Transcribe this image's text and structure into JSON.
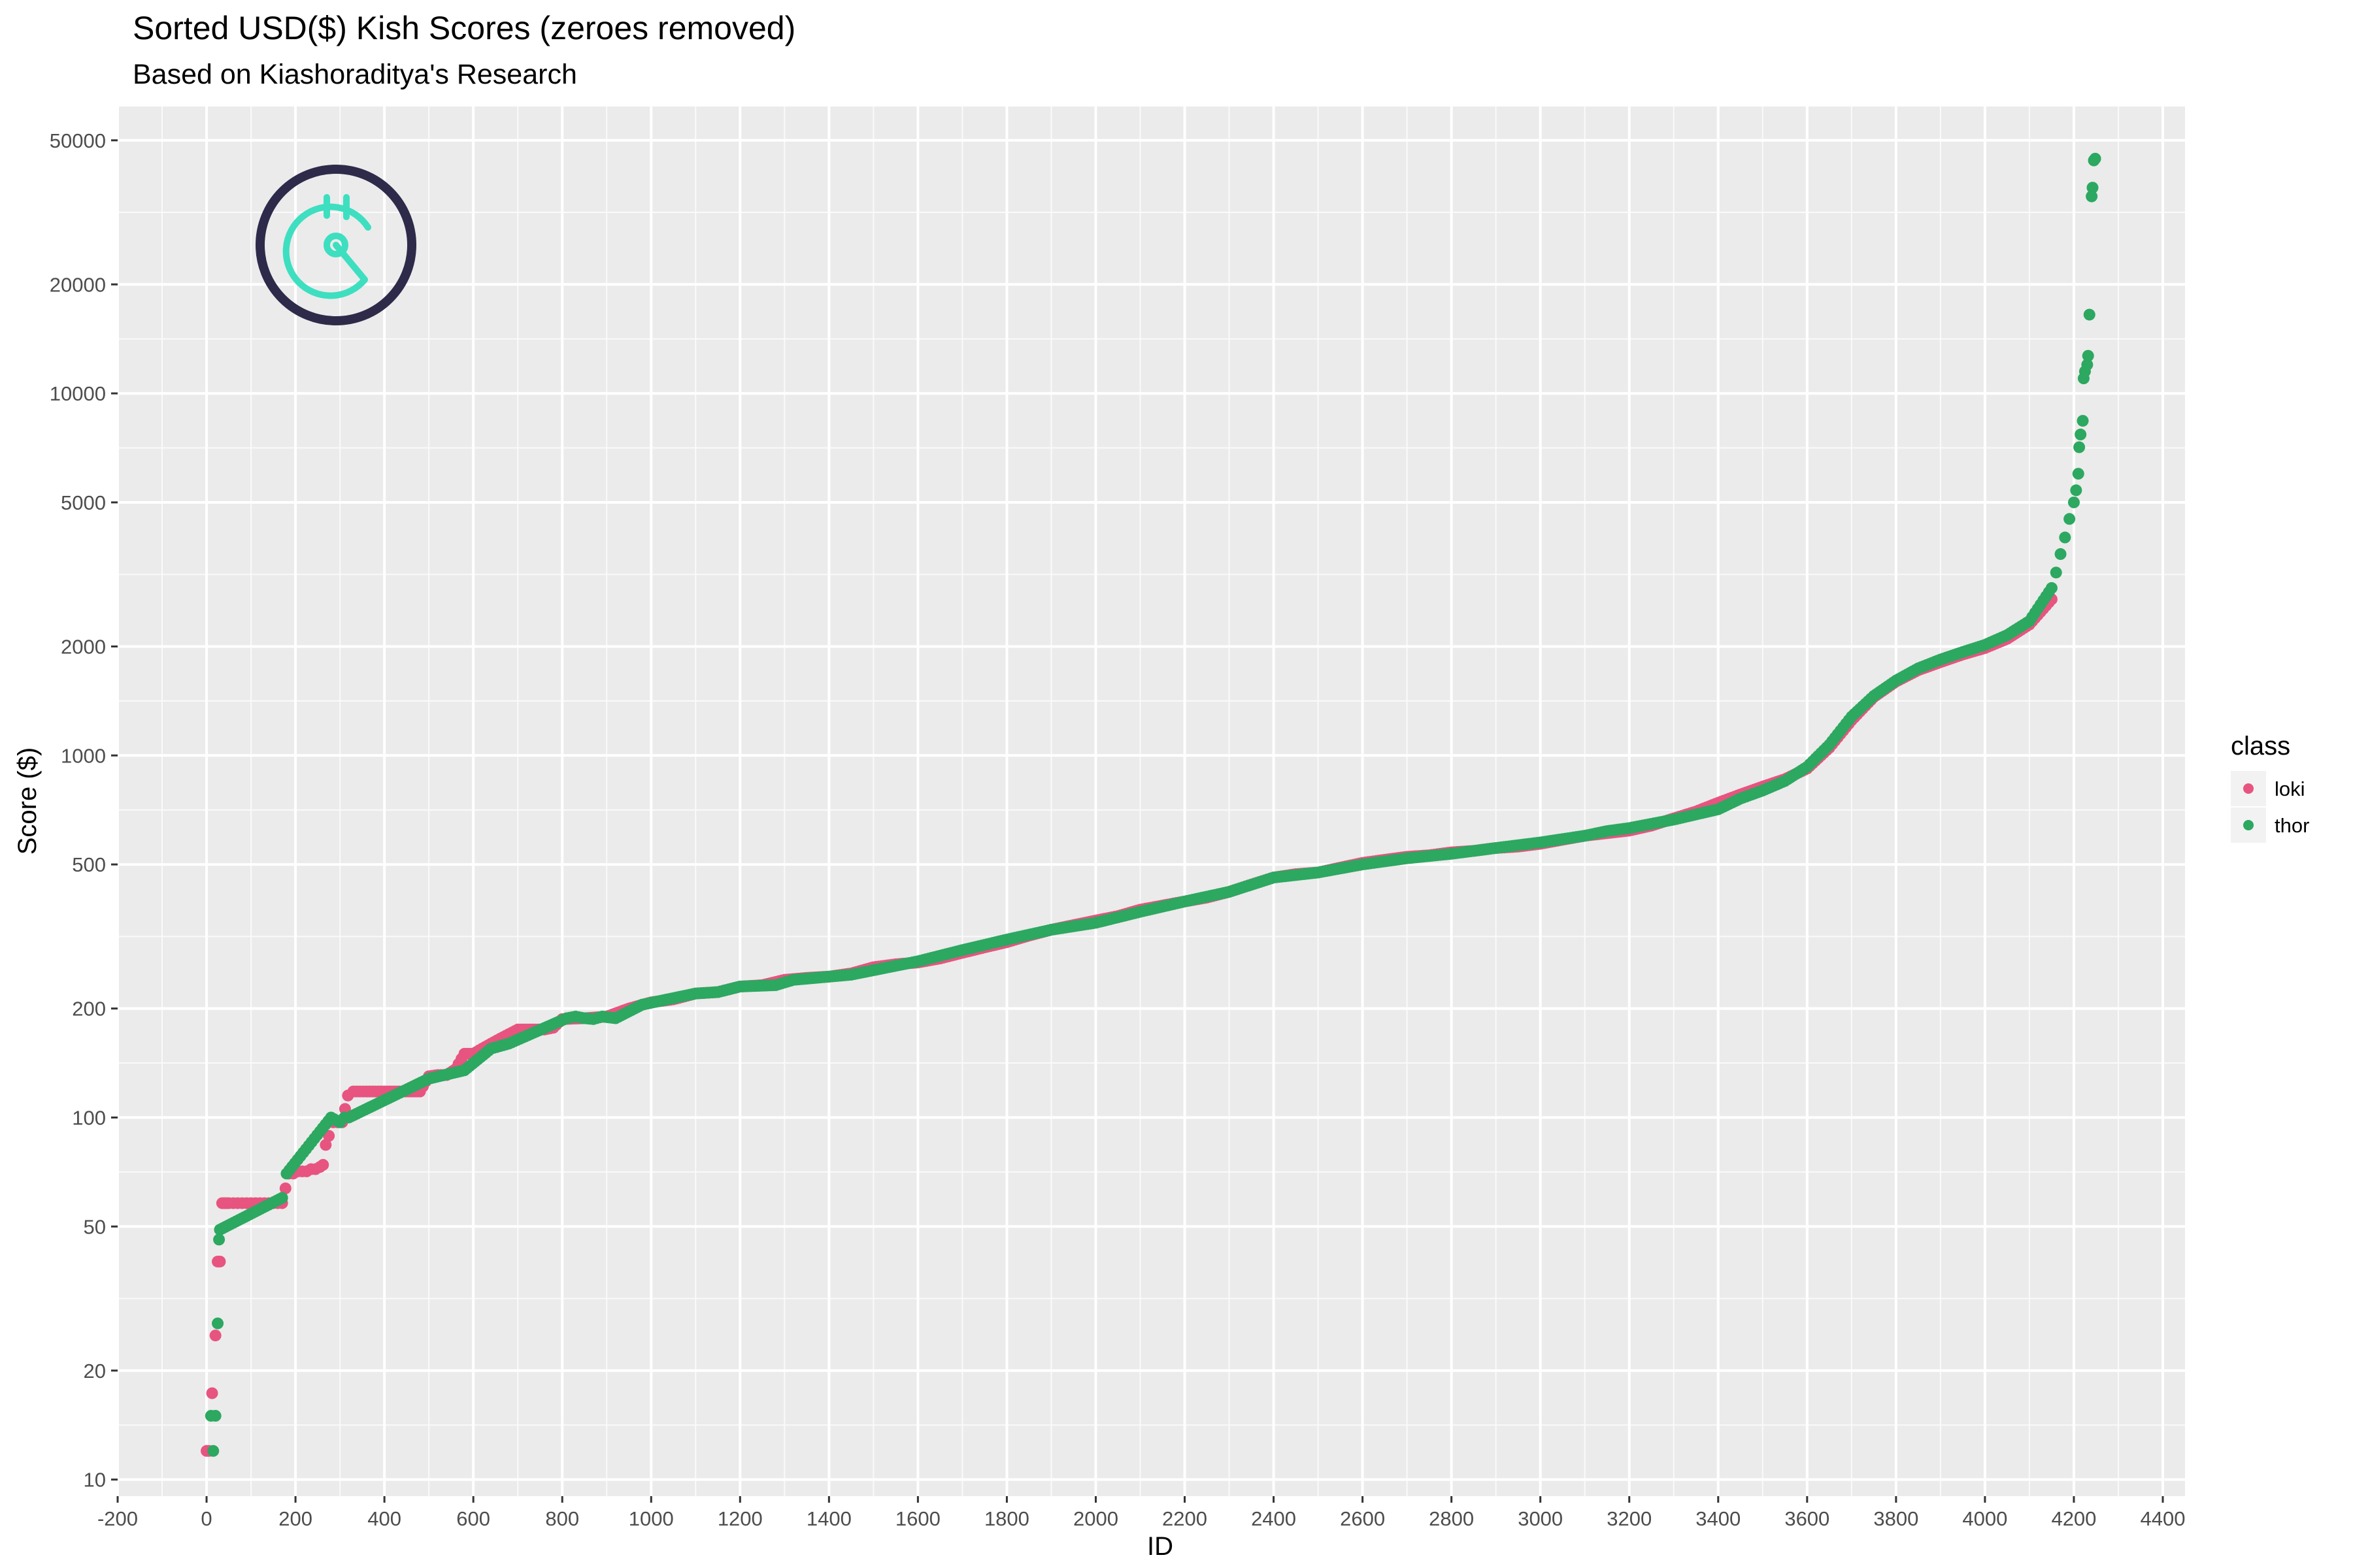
{
  "chart_data": {
    "type": "scatter",
    "title": "Sorted USD($) Kish Scores (zeroes removed)",
    "subtitle": "Based on Kiashoraditya's Research",
    "xlabel": "ID",
    "ylabel": "Score ($)",
    "xlim": [
      -200,
      4450
    ],
    "ylim": [
      9,
      62000
    ],
    "y_scale": "log10",
    "grid": true,
    "x_ticks": [
      -200,
      0,
      200,
      400,
      600,
      800,
      1000,
      1200,
      1400,
      1600,
      1800,
      2000,
      2200,
      2400,
      2600,
      2800,
      3000,
      3200,
      3400,
      3600,
      3800,
      4000,
      4200,
      4400
    ],
    "y_ticks": [
      10,
      20,
      50,
      100,
      200,
      500,
      1000,
      2000,
      5000,
      10000,
      20000,
      50000
    ],
    "y_tick_labels": [
      "10",
      "20",
      "50",
      "100",
      "200",
      "500",
      "1000",
      "2000",
      "5000",
      "10000",
      "20000",
      "50000"
    ],
    "legend": {
      "title": "class",
      "position": "right"
    },
    "series": [
      {
        "name": "loki",
        "color": "#E75480",
        "x": [
          0,
          5,
          20,
          25,
          30,
          35,
          40,
          45,
          50,
          60,
          70,
          80,
          90,
          100,
          110,
          120,
          130,
          140,
          150,
          160,
          170,
          185,
          195,
          205,
          215,
          225,
          235,
          245,
          255,
          262,
          268,
          275,
          285,
          295,
          305,
          318,
          330,
          345,
          360,
          380,
          400,
          420,
          440,
          460,
          480,
          500,
          520,
          540,
          560,
          580,
          600,
          620,
          640,
          660,
          700,
          720,
          740,
          760,
          780,
          800,
          850,
          900,
          950,
          1000,
          1050,
          1100,
          1150,
          1200,
          1250,
          1300,
          1350,
          1400,
          1450,
          1500,
          1550,
          1600,
          1650,
          1700,
          1750,
          1800,
          1850,
          1900,
          1950,
          2000,
          2050,
          2100,
          2150,
          2200,
          2250,
          2300,
          2350,
          2400,
          2450,
          2500,
          2550,
          2600,
          2650,
          2700,
          2750,
          2800,
          2850,
          2900,
          2950,
          3000,
          3050,
          3100,
          3150,
          3200,
          3250,
          3300,
          3350,
          3400,
          3450,
          3500,
          3550,
          3600,
          3650,
          3700,
          3750,
          3800,
          3850,
          3900,
          3950,
          4000,
          4050,
          4100,
          4150
        ],
        "y": [
          12,
          12,
          25,
          40,
          40,
          58,
          58,
          58,
          58,
          58,
          58,
          58,
          58,
          58,
          58,
          58,
          58,
          58,
          58,
          58,
          58,
          70,
          70,
          71,
          71,
          71,
          72,
          72,
          73,
          74,
          84,
          89,
          97,
          97,
          97,
          115,
          118,
          118,
          118,
          118,
          118,
          118,
          118,
          118,
          118,
          130,
          131,
          131,
          136,
          150,
          150,
          155,
          160,
          165,
          175,
          175,
          175,
          175,
          177,
          187,
          188,
          190,
          200,
          208,
          212,
          220,
          222,
          230,
          232,
          240,
          243,
          245,
          250,
          260,
          265,
          268,
          275,
          285,
          295,
          305,
          318,
          330,
          340,
          350,
          360,
          375,
          385,
          395,
          405,
          420,
          440,
          460,
          470,
          475,
          490,
          505,
          515,
          525,
          530,
          540,
          545,
          555,
          560,
          570,
          585,
          600,
          610,
          620,
          640,
          670,
          700,
          740,
          780,
          820,
          860,
          920,
          1050,
          1250,
          1450,
          1600,
          1720,
          1810,
          1900,
          1980,
          2100,
          2300,
          2700
        ]
      },
      {
        "name": "thor",
        "color": "#2CA860",
        "x": [
          10,
          15,
          20,
          25,
          28,
          30,
          170,
          180,
          280,
          300,
          310,
          320,
          500,
          580,
          640,
          680,
          810,
          830,
          850,
          870,
          890,
          920,
          980,
          1100,
          1150,
          1200,
          1280,
          1320,
          1450,
          1600,
          1700,
          1800,
          1900,
          2000,
          2100,
          2200,
          2300,
          2400,
          2500,
          2600,
          2700,
          2800,
          2900,
          3000,
          3100,
          3150,
          3200,
          3300,
          3400,
          3450,
          3500,
          3550,
          3600,
          3650,
          3700,
          3750,
          3800,
          3850,
          3900,
          3950,
          4000,
          4050,
          4100,
          4150,
          4160,
          4170,
          4180,
          4190,
          4200,
          4205,
          4210,
          4212,
          4215,
          4220,
          4222,
          4225,
          4230,
          4232,
          4235,
          4240,
          4242,
          4245,
          4248
        ],
        "y": [
          15,
          12,
          15,
          27,
          46,
          49,
          60,
          70,
          100,
          97,
          100,
          100,
          128,
          135,
          155,
          160,
          188,
          190,
          188,
          187,
          190,
          188,
          205,
          220,
          222,
          230,
          232,
          240,
          248,
          270,
          290,
          310,
          330,
          345,
          370,
          395,
          420,
          460,
          475,
          500,
          520,
          535,
          555,
          575,
          600,
          618,
          630,
          665,
          710,
          760,
          800,
          850,
          930,
          1070,
          1280,
          1460,
          1610,
          1740,
          1840,
          1930,
          2020,
          2150,
          2350,
          2900,
          3200,
          3600,
          4000,
          4500,
          5000,
          5400,
          6000,
          7100,
          7700,
          8400,
          11000,
          11500,
          12000,
          12700,
          16500,
          35000,
          37000,
          44000,
          44500
        ]
      }
    ]
  },
  "logo": {
    "name": "kish-logo",
    "ring_color": "#2D2A4A",
    "glyph_color": "#3DDFC0"
  }
}
